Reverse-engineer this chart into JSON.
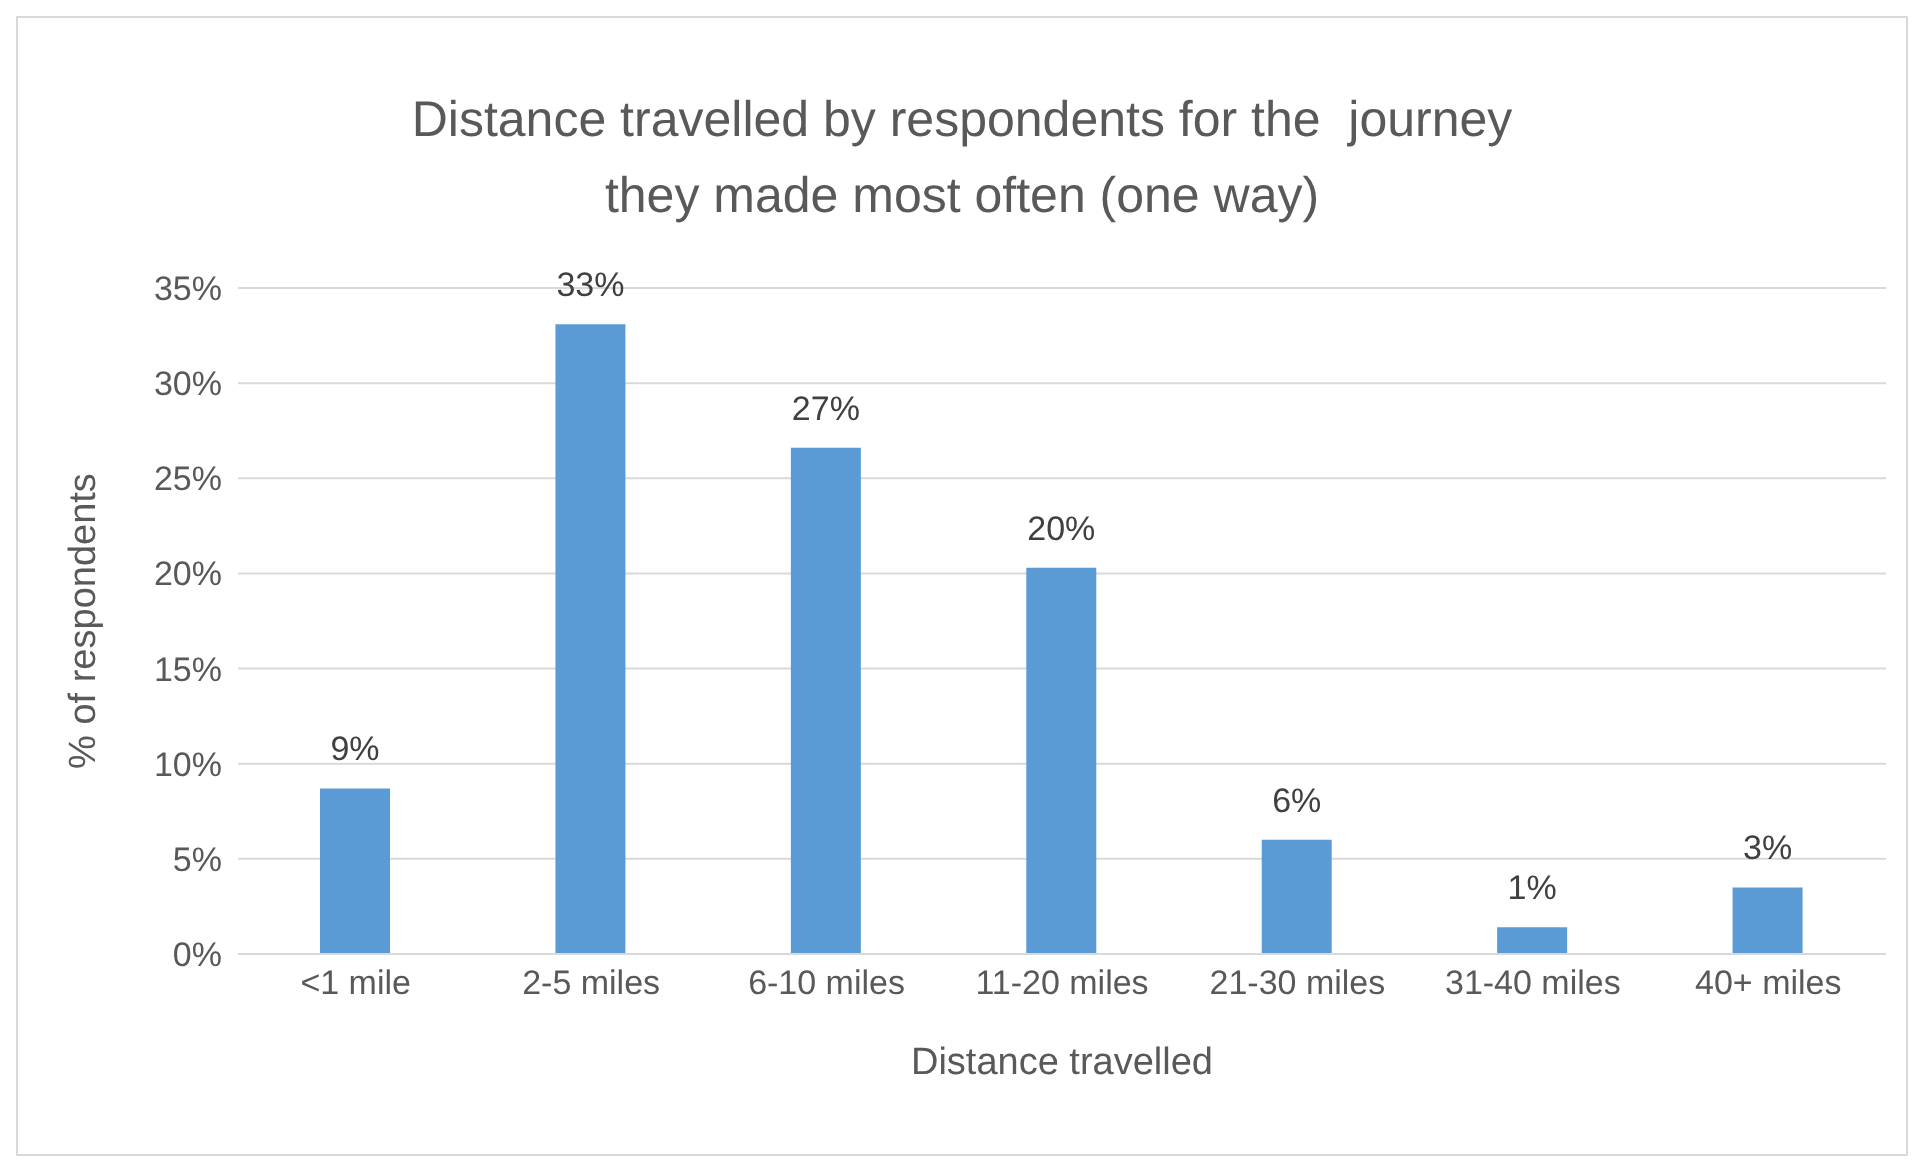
{
  "chart_data": {
    "type": "bar",
    "title": "Distance travelled by respondents for the  journey they made most often (one way)",
    "xlabel": "Distance travelled",
    "ylabel": "% of respondents",
    "categories": [
      "<1 mile",
      "2-5 miles",
      "6-10 miles",
      "11-20 miles",
      "21-30 miles",
      "31-40 miles",
      "40+ miles"
    ],
    "values": [
      8.7,
      33.1,
      26.6,
      20.3,
      6.0,
      1.4,
      3.5
    ],
    "value_labels": [
      "9%",
      "33%",
      "27%",
      "20%",
      "6%",
      "1%",
      "3%"
    ],
    "color": "#5b9bd5",
    "ylim": [
      0,
      35
    ],
    "yticks": [
      {
        "value": 0,
        "label": "0%"
      },
      {
        "value": 5,
        "label": "5%"
      },
      {
        "value": 10,
        "label": "10%"
      },
      {
        "value": 15,
        "label": "15%"
      },
      {
        "value": 20,
        "label": "20%"
      },
      {
        "value": 25,
        "label": "25%"
      },
      {
        "value": 30,
        "label": "30%"
      },
      {
        "value": 35,
        "label": "35%"
      }
    ],
    "grid": "y"
  }
}
